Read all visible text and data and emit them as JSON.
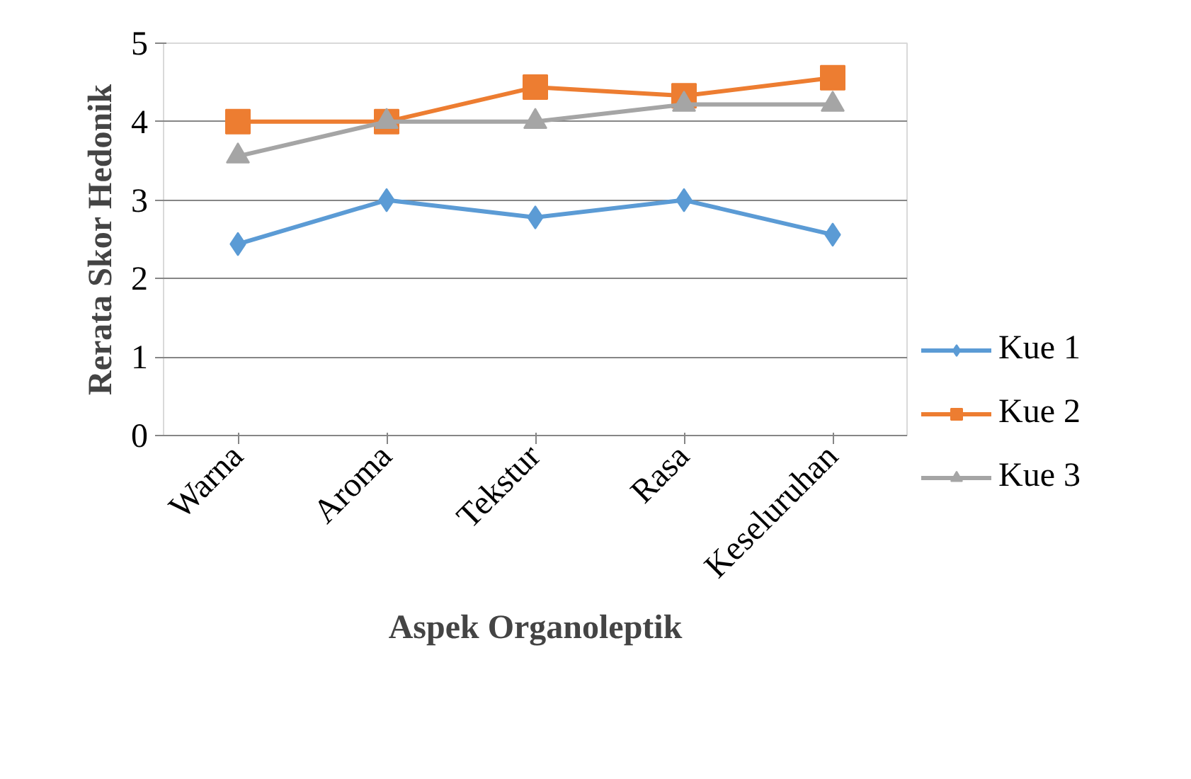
{
  "chart_data": {
    "type": "line",
    "xlabel": "Aspek Organoleptik",
    "ylabel": "Rerata Skor Hedonik",
    "categories": [
      "Warna",
      "Aroma",
      "Tekstur",
      "Rasa",
      "Keseluruhan"
    ],
    "series": [
      {
        "name": "Kue 1",
        "color": "#5b9bd5",
        "marker": "diamond",
        "values": [
          2.44,
          3.0,
          2.78,
          3.0,
          2.56
        ]
      },
      {
        "name": "Kue 2",
        "color": "#ed7d31",
        "marker": "square",
        "values": [
          4.0,
          4.0,
          4.44,
          4.33,
          4.56
        ]
      },
      {
        "name": "Kue 3",
        "color": "#a5a5a5",
        "marker": "triangle",
        "values": [
          3.56,
          4.0,
          4.0,
          4.22,
          4.22
        ]
      }
    ],
    "ylim": [
      0,
      5
    ],
    "yticks": [
      0,
      1,
      2,
      3,
      4,
      5
    ],
    "grid": "y",
    "legend": "right",
    "line_style": "solid"
  }
}
